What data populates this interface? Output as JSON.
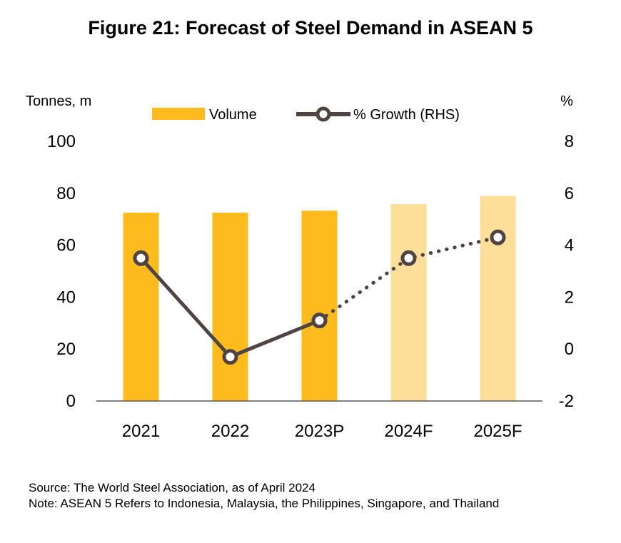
{
  "chart_data": {
    "type": "bar",
    "title": "Figure 21: Forecast of Steel Demand in ASEAN 5",
    "ylabel": "Tonnes, m",
    "y2label": "%",
    "categories": [
      "2021",
      "2022",
      "2023P",
      "2024F",
      "2025F"
    ],
    "ylim": [
      0,
      100
    ],
    "y_ticks": [
      "0",
      "20",
      "40",
      "60",
      "80",
      "100"
    ],
    "y2lim": [
      -2,
      8
    ],
    "y2_ticks": [
      "-2",
      "0",
      "2",
      "4",
      "6",
      "8"
    ],
    "legend_position": "top",
    "series": [
      {
        "name": "Volume",
        "type": "bar",
        "axis": "left",
        "values": [
          72.5,
          72.5,
          73.3,
          75.8,
          79.0
        ],
        "colors": [
          "#FDBB1E",
          "#FDBB1E",
          "#FDBB1E",
          "#FDDF99",
          "#FDDF99"
        ]
      },
      {
        "name": "% Growth (RHS)",
        "type": "line",
        "axis": "right",
        "values": [
          3.5,
          -0.3,
          1.1,
          3.5,
          4.3
        ],
        "color": "#4F4343",
        "solid_through_index": 2
      }
    ]
  },
  "footer": {
    "source": "Source: The World Steel Association, as of April 2024",
    "note": "Note: ASEAN 5 Refers to Indonesia, Malaysia, the Philippines, Singapore, and Thailand"
  }
}
